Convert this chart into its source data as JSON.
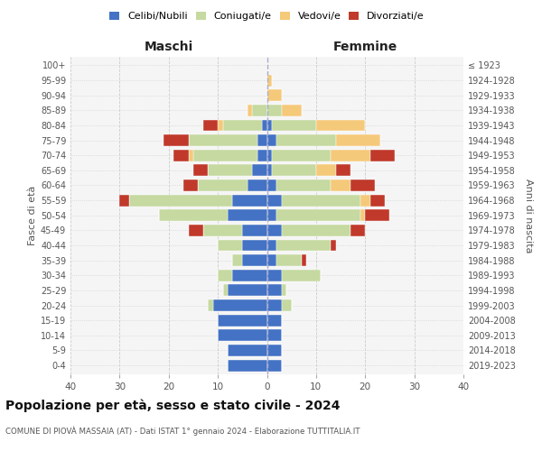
{
  "age_groups": [
    "0-4",
    "5-9",
    "10-14",
    "15-19",
    "20-24",
    "25-29",
    "30-34",
    "35-39",
    "40-44",
    "45-49",
    "50-54",
    "55-59",
    "60-64",
    "65-69",
    "70-74",
    "75-79",
    "80-84",
    "85-89",
    "90-94",
    "95-99",
    "100+"
  ],
  "birth_years": [
    "2019-2023",
    "2014-2018",
    "2009-2013",
    "2004-2008",
    "1999-2003",
    "1994-1998",
    "1989-1993",
    "1984-1988",
    "1979-1983",
    "1974-1978",
    "1969-1973",
    "1964-1968",
    "1959-1963",
    "1954-1958",
    "1949-1953",
    "1944-1948",
    "1939-1943",
    "1934-1938",
    "1929-1933",
    "1924-1928",
    "≤ 1923"
  ],
  "colors": {
    "celibi": "#4472c4",
    "coniugati": "#c5d9a0",
    "vedovi": "#f5c97a",
    "divorziati": "#c0392b"
  },
  "maschi": {
    "celibi": [
      8,
      8,
      10,
      10,
      11,
      8,
      7,
      5,
      5,
      5,
      8,
      7,
      4,
      3,
      2,
      2,
      1,
      0,
      0,
      0,
      0
    ],
    "coniugati": [
      0,
      0,
      0,
      0,
      1,
      1,
      3,
      2,
      5,
      8,
      14,
      21,
      10,
      9,
      13,
      14,
      8,
      3,
      0,
      0,
      0
    ],
    "vedovi": [
      0,
      0,
      0,
      0,
      0,
      0,
      0,
      0,
      0,
      0,
      0,
      0,
      0,
      0,
      1,
      0,
      1,
      1,
      0,
      0,
      0
    ],
    "divorziati": [
      0,
      0,
      0,
      0,
      0,
      0,
      0,
      0,
      0,
      3,
      0,
      2,
      3,
      3,
      3,
      5,
      3,
      0,
      0,
      0,
      0
    ]
  },
  "femmine": {
    "celibi": [
      3,
      3,
      3,
      3,
      3,
      3,
      3,
      2,
      2,
      3,
      2,
      3,
      2,
      1,
      1,
      2,
      1,
      0,
      0,
      0,
      0
    ],
    "coniugati": [
      0,
      0,
      0,
      0,
      2,
      1,
      8,
      5,
      11,
      14,
      17,
      16,
      11,
      9,
      12,
      12,
      9,
      3,
      0,
      0,
      0
    ],
    "vedovi": [
      0,
      0,
      0,
      0,
      0,
      0,
      0,
      0,
      0,
      0,
      1,
      2,
      4,
      4,
      8,
      9,
      10,
      4,
      3,
      1,
      0
    ],
    "divorziati": [
      0,
      0,
      0,
      0,
      0,
      0,
      0,
      1,
      1,
      3,
      5,
      3,
      5,
      3,
      5,
      0,
      0,
      0,
      0,
      0,
      0
    ]
  },
  "xlim": 40,
  "title": "Popolazione per età, sesso e stato civile - 2024",
  "subtitle": "COMUNE DI PIOVÀ MASSAIA (AT) - Dati ISTAT 1° gennaio 2024 - Elaborazione TUTTITALIA.IT",
  "xlabel_left": "Maschi",
  "xlabel_right": "Femmine",
  "ylabel_left": "Fasce di età",
  "ylabel_right": "Anni di nascita",
  "legend_labels": [
    "Celibi/Nubili",
    "Coniugati/e",
    "Vedovi/e",
    "Divorziati/e"
  ],
  "bg_color": "#f5f5f5"
}
